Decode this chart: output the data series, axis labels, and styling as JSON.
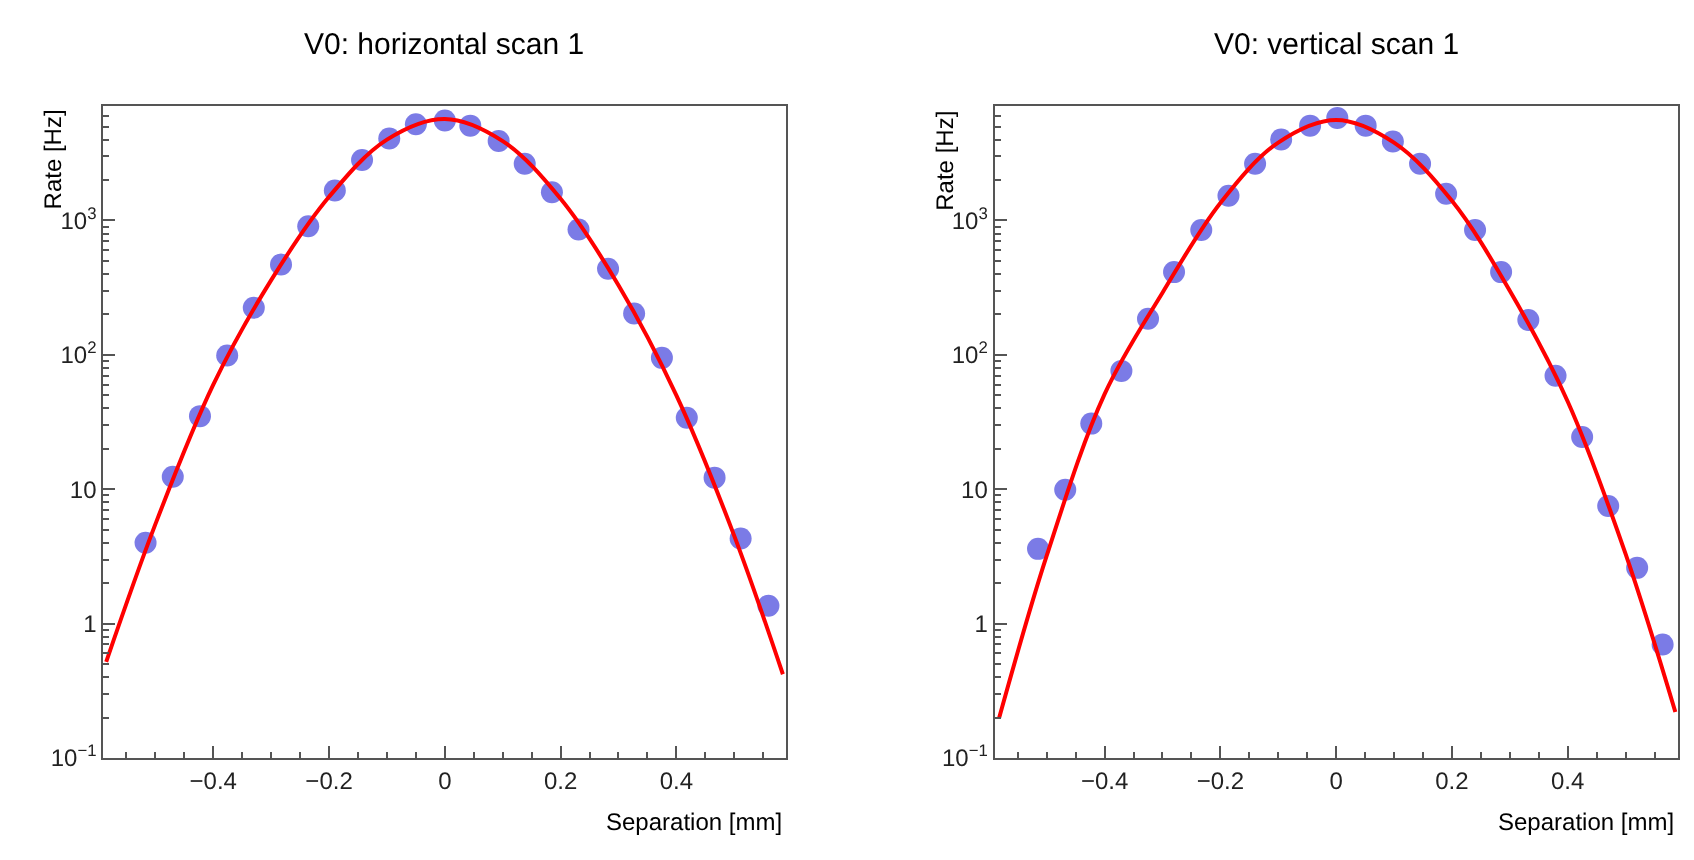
{
  "chart_data": [
    {
      "type": "scatter",
      "title": "V0: horizontal scan 1",
      "xlabel": "Separation [mm]",
      "ylabel": "Rate [Hz]",
      "log": "y",
      "xlim": [
        -0.59,
        0.59
      ],
      "ylim": [
        0.1,
        7100
      ],
      "xticks": [
        -0.4,
        -0.2,
        0,
        0.2,
        0.4
      ],
      "yticks": [
        {
          "value": 0.1,
          "label": "10$^{−1}$"
        },
        1,
        10,
        {
          "value": 100,
          "label": "10$^{2}$"
        },
        {
          "value": 1000,
          "label": "10$^{3}$"
        }
      ],
      "series": [
        {
          "marker": "circle",
          "color": "#7b7be6",
          "x": [
            -0.517,
            -0.47,
            -0.423,
            -0.376,
            -0.33,
            -0.283,
            -0.236,
            -0.19,
            -0.143,
            -0.096,
            -0.05,
            0,
            0.044,
            0.093,
            0.138,
            0.185,
            0.231,
            0.282,
            0.327,
            0.375,
            0.418,
            0.466,
            0.511,
            0.559
          ],
          "values": [
            4.0,
            12.4,
            35,
            99,
            224,
            471,
            906,
            1670,
            2820,
            4080,
            5200,
            5540,
            5080,
            3910,
            2640,
            1620,
            858,
            437,
            203,
            95,
            34,
            12.2,
            4.3,
            1.36
          ]
        },
        {
          "type": "line",
          "marker": "none",
          "line_style": "solid",
          "color": "#ff0000",
          "x": [
            -0.585,
            -0.5,
            -0.4,
            -0.3,
            -0.2,
            -0.1,
            0,
            0.1,
            0.2,
            0.3,
            0.4,
            0.5,
            0.584
          ],
          "values": [
            0.52,
            5.5,
            60,
            360,
            1500,
            4000,
            5700,
            3900,
            1450,
            330,
            50,
            4.5,
            0.42
          ]
        }
      ]
    },
    {
      "type": "scatter",
      "title": "V0: vertical scan 1",
      "xlabel": "Separation [mm]",
      "ylabel": "Rate [Hz]",
      "log": "y",
      "xlim": [
        -0.59,
        0.59
      ],
      "ylim": [
        0.1,
        7100
      ],
      "xticks": [
        -0.4,
        -0.2,
        0,
        0.2,
        0.4
      ],
      "yticks": [
        {
          "value": 0.1,
          "label": "10$^{−1}$"
        },
        1,
        10,
        {
          "value": 100,
          "label": "10$^{2}$"
        },
        {
          "value": 1000,
          "label": "10$^{3}$"
        }
      ],
      "series": [
        {
          "marker": "circle",
          "color": "#7b7be6",
          "x": [
            -0.515,
            -0.468,
            -0.423,
            -0.371,
            -0.325,
            -0.28,
            -0.233,
            -0.186,
            -0.14,
            -0.095,
            -0.045,
            0.002,
            0.051,
            0.098,
            0.145,
            0.19,
            0.24,
            0.285,
            0.332,
            0.379,
            0.425,
            0.47,
            0.52,
            0.564
          ],
          "values": [
            3.6,
            9.9,
            30.8,
            76,
            186,
            413,
            849,
            1530,
            2640,
            4000,
            5080,
            5800,
            5080,
            3870,
            2640,
            1580,
            849,
            413,
            182,
            70,
            24.5,
            7.5,
            2.6,
            0.7
          ]
        },
        {
          "type": "line",
          "marker": "none",
          "line_style": "solid",
          "color": "#ff0000",
          "x": [
            -0.582,
            -0.5,
            -0.4,
            -0.3,
            -0.2,
            -0.1,
            0,
            0.1,
            0.2,
            0.3,
            0.4,
            0.5,
            0.586
          ],
          "values": [
            0.2,
            3.2,
            51,
            290,
            1350,
            3800,
            5600,
            3800,
            1400,
            300,
            45,
            3.3,
            0.22
          ]
        }
      ]
    }
  ]
}
